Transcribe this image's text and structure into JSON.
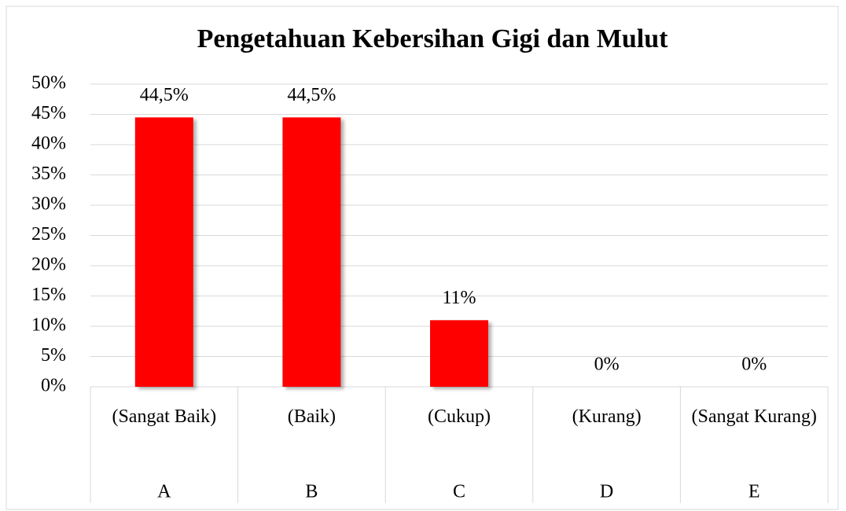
{
  "chart_data": {
    "type": "bar",
    "title": "Pengetahuan Kebersihan Gigi dan Mulut",
    "categories": [
      "A",
      "B",
      "C",
      "D",
      "E"
    ],
    "subcategories": [
      "(Sangat Baik)",
      "(Baik)",
      "(Cukup)",
      "(Kurang)",
      "(Sangat Kurang)"
    ],
    "values": [
      44.5,
      44.5,
      11,
      0,
      0
    ],
    "value_labels": [
      "44,5%",
      "44,5%",
      "11%",
      "0%",
      "0%"
    ],
    "color": "#ff0000",
    "ylim": [
      0,
      50
    ],
    "yticks": [
      {
        "value": 0,
        "label": "0%"
      },
      {
        "value": 5,
        "label": "5%"
      },
      {
        "value": 10,
        "label": "10%"
      },
      {
        "value": 15,
        "label": "15%"
      },
      {
        "value": 20,
        "label": "20%"
      },
      {
        "value": 25,
        "label": "25%"
      },
      {
        "value": 30,
        "label": "30%"
      },
      {
        "value": 35,
        "label": "35%"
      },
      {
        "value": 40,
        "label": "40%"
      },
      {
        "value": 45,
        "label": "45%"
      },
      {
        "value": 50,
        "label": "50%"
      }
    ],
    "grid": true
  }
}
